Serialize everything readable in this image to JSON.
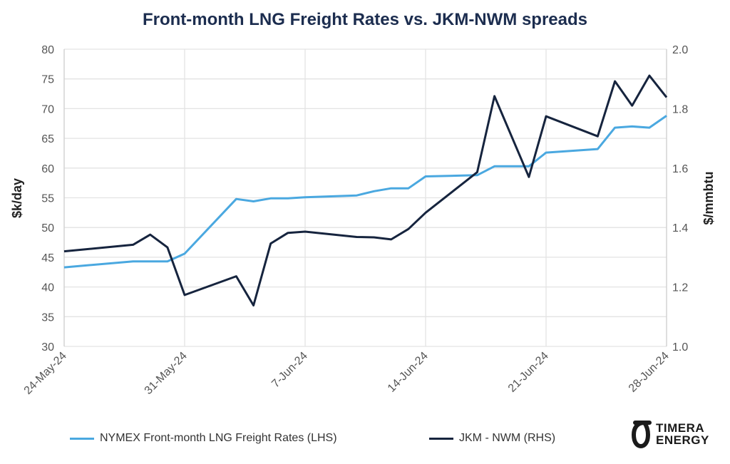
{
  "chart_data": {
    "type": "line",
    "title": "Front-month LNG Freight Rates vs. JKM-NWM spreads",
    "ylabel_left": "$k/day",
    "ylabel_right": "$/mmbtu",
    "ylim_left": [
      30,
      80
    ],
    "ylim_right": [
      1.0,
      2.0
    ],
    "yticks_left": [
      "30",
      "35",
      "40",
      "45",
      "50",
      "55",
      "60",
      "65",
      "70",
      "75",
      "80"
    ],
    "yticks_right": [
      "1.0",
      "1.2",
      "1.4",
      "1.6",
      "1.8",
      "2.0"
    ],
    "xlim": [
      "2024-05-24",
      "2024-06-28"
    ],
    "xticks": [
      "24-May-24",
      "31-May-24",
      "7-Jun-24",
      "14-Jun-24",
      "21-Jun-24",
      "28-Jun-24"
    ],
    "grid": true,
    "legend_position": "bottom",
    "x": [
      "2024-05-24",
      "2024-05-28",
      "2024-05-29",
      "2024-05-30",
      "2024-05-31",
      "2024-06-03",
      "2024-06-04",
      "2024-06-05",
      "2024-06-06",
      "2024-06-07",
      "2024-06-10",
      "2024-06-11",
      "2024-06-12",
      "2024-06-13",
      "2024-06-14",
      "2024-06-17",
      "2024-06-18",
      "2024-06-20",
      "2024-06-21",
      "2024-06-24",
      "2024-06-25",
      "2024-06-26",
      "2024-06-27",
      "2024-06-28"
    ],
    "series": [
      {
        "name": "NYMEX Front-month LNG Freight Rates (LHS)",
        "axis": "left",
        "color": "#4aa8e0",
        "values": [
          43.3,
          44.3,
          44.3,
          44.3,
          45.6,
          54.8,
          54.4,
          54.9,
          54.9,
          55.1,
          55.4,
          56.1,
          56.6,
          56.6,
          58.6,
          58.8,
          60.3,
          60.3,
          62.6,
          63.2,
          66.8,
          67.0,
          66.8,
          68.8
        ]
      },
      {
        "name": "JKM - NWM (RHS)",
        "axis": "right",
        "color": "#16243e",
        "values": [
          1.32,
          1.342,
          1.376,
          1.333,
          1.173,
          1.236,
          1.138,
          1.346,
          1.382,
          1.386,
          1.368,
          1.367,
          1.36,
          1.395,
          1.45,
          1.586,
          1.842,
          1.57,
          1.774,
          1.707,
          1.892,
          1.81,
          1.911,
          1.838
        ]
      }
    ]
  },
  "logo": {
    "line1": "TIMERA",
    "line2": "ENERGY"
  }
}
